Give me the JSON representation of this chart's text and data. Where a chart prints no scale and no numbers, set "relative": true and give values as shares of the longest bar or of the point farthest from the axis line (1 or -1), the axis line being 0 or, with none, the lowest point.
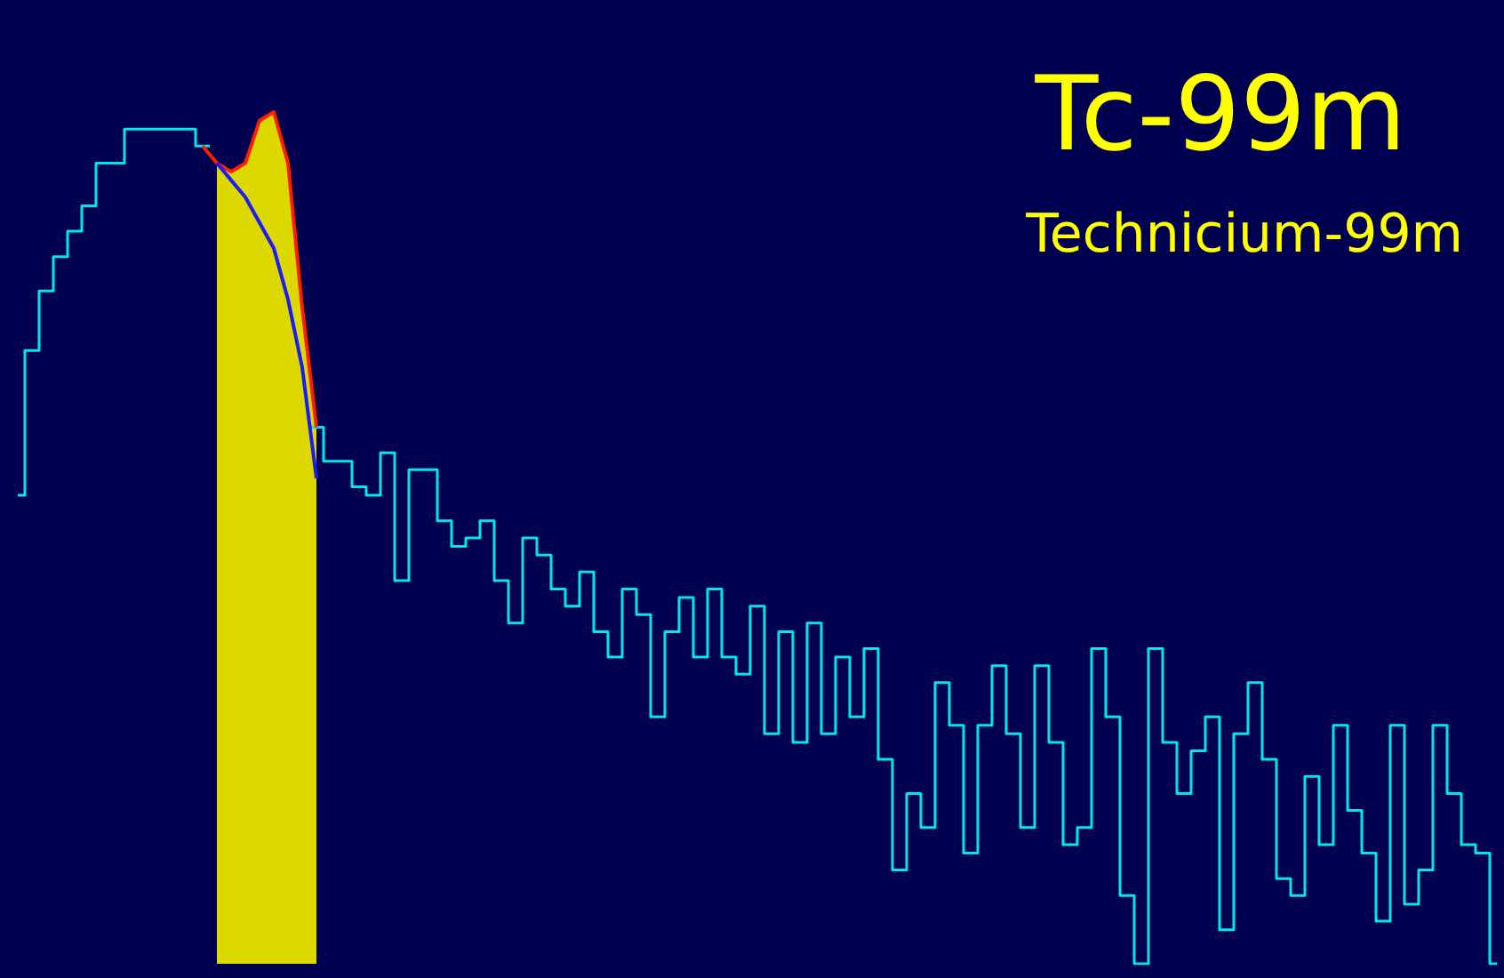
{
  "chart_data": {
    "type": "line",
    "title": "Tc-99m",
    "subtitle": "Technicium-99m",
    "relative": true,
    "grid": false,
    "categories": [
      null,
      null,
      null,
      null,
      null,
      null,
      null,
      null,
      null,
      null,
      null,
      null,
      null,
      null,
      null,
      null,
      null,
      null,
      null,
      null,
      null,
      null,
      null,
      null,
      null,
      null,
      null,
      null,
      null,
      null,
      null,
      null,
      null,
      null,
      null,
      null,
      null,
      null,
      null,
      null,
      null,
      null,
      null,
      null,
      null,
      null,
      null,
      null,
      null,
      null,
      null,
      null,
      null,
      null,
      null,
      null,
      null,
      null,
      null,
      null,
      null,
      null,
      null,
      null,
      null,
      null,
      null,
      null,
      null,
      null,
      null,
      null,
      null,
      null,
      null,
      null,
      null,
      null,
      null,
      null,
      null,
      null,
      null,
      null,
      null,
      null,
      null,
      null,
      null,
      null,
      null,
      null,
      null,
      null,
      null,
      null,
      null,
      null,
      null,
      null,
      null,
      null,
      null,
      null,
      null
    ],
    "series": [
      {
        "type": "area",
        "color": "#dcd800",
        "values": [
          null,
          null,
          null,
          null,
          null,
          null,
          null,
          null,
          null,
          null,
          null,
          null,
          null,
          null,
          0.94,
          0.93,
          0.94,
          0.99,
          1.0,
          0.94,
          0.77,
          0.63,
          null,
          null,
          null,
          null,
          null,
          null,
          null,
          null,
          null,
          null,
          null,
          null,
          null,
          null,
          null,
          null,
          null,
          null,
          null,
          null,
          null,
          null,
          null,
          null,
          null,
          null,
          null,
          null,
          null,
          null,
          null,
          null,
          null,
          null,
          null,
          null,
          null,
          null,
          null,
          null,
          null,
          null,
          null,
          null,
          null,
          null,
          null,
          null,
          null,
          null,
          null,
          null,
          null,
          null,
          null,
          null,
          null,
          null,
          null,
          null,
          null,
          null,
          null,
          null,
          null,
          null,
          null,
          null,
          null,
          null,
          null,
          null,
          null,
          null,
          null,
          null,
          null,
          null,
          null,
          null,
          null,
          null,
          null
        ]
      },
      {
        "type": "step",
        "color": "#00e5ee",
        "values": [
          0.55,
          0.72,
          0.79,
          0.83,
          0.86,
          0.89,
          0.94,
          0.94,
          0.98,
          0.98,
          0.98,
          0.98,
          0.98,
          0.96,
          null,
          null,
          null,
          null,
          null,
          null,
          null,
          0.63,
          0.59,
          0.59,
          0.56,
          0.55,
          0.6,
          0.45,
          0.58,
          0.58,
          0.52,
          0.49,
          0.5,
          0.52,
          0.45,
          0.4,
          0.5,
          0.48,
          0.44,
          0.42,
          0.46,
          0.39,
          0.36,
          0.44,
          0.41,
          0.29,
          0.39,
          0.43,
          0.36,
          0.44,
          0.36,
          0.34,
          0.42,
          0.27,
          0.39,
          0.26,
          0.4,
          0.27,
          0.36,
          0.29,
          0.37,
          0.24,
          0.11,
          0.2,
          0.16,
          0.33,
          0.28,
          0.13,
          0.28,
          0.35,
          0.27,
          0.16,
          0.35,
          0.26,
          0.14,
          0.16,
          0.37,
          0.29,
          0.08,
          0,
          0.37,
          0.26,
          0.2,
          0.25,
          0.29,
          0.04,
          0.27,
          0.33,
          0.24,
          0.1,
          0.08,
          0.22,
          0.14,
          0.28,
          0.18,
          0.13,
          0.05,
          0.28,
          0.07,
          0.11,
          0.28,
          0.2,
          0.14,
          0.13,
          0
        ]
      },
      {
        "color": "#ff1a00",
        "values": [
          null,
          null,
          null,
          null,
          null,
          null,
          null,
          null,
          null,
          null,
          null,
          null,
          null,
          0.96,
          0.94,
          0.93,
          0.94,
          0.99,
          1.0,
          0.94,
          0.77,
          0.63,
          null,
          null,
          null,
          null,
          null,
          null,
          null,
          null,
          null,
          null,
          null,
          null,
          null,
          null,
          null,
          null,
          null,
          null,
          null,
          null,
          null,
          null,
          null,
          null,
          null,
          null,
          null,
          null,
          null,
          null,
          null,
          null,
          null,
          null,
          null,
          null,
          null,
          null,
          null,
          null,
          null,
          null,
          null,
          null,
          null,
          null,
          null,
          null,
          null,
          null,
          null,
          null,
          null,
          null,
          null,
          null,
          null,
          null,
          null,
          null,
          null,
          null,
          null,
          null,
          null,
          null,
          null,
          null,
          null,
          null,
          null,
          null,
          null,
          null,
          null,
          null,
          null,
          null,
          null,
          null,
          null,
          null,
          null
        ]
      },
      {
        "color": "#1a1aff",
        "values": [
          null,
          null,
          null,
          null,
          null,
          null,
          null,
          null,
          null,
          null,
          null,
          null,
          null,
          null,
          0.94,
          0.92,
          0.9,
          0.87,
          0.84,
          0.78,
          0.7,
          0.57,
          null,
          null,
          null,
          null,
          null,
          null,
          null,
          null,
          null,
          null,
          null,
          null,
          null,
          null,
          null,
          null,
          null,
          null,
          null,
          null,
          null,
          null,
          null,
          null,
          null,
          null,
          null,
          null,
          null,
          null,
          null,
          null,
          null,
          null,
          null,
          null,
          null,
          null,
          null,
          null,
          null,
          null,
          null,
          null,
          null,
          null,
          null,
          null,
          null,
          null,
          null,
          null,
          null,
          null,
          null,
          null,
          null,
          null,
          null,
          null,
          null,
          null,
          null,
          null,
          null,
          null,
          null,
          null,
          null,
          null,
          null,
          null,
          null,
          null,
          null,
          null,
          null,
          null,
          null,
          null,
          null,
          null,
          null
        ]
      }
    ]
  }
}
